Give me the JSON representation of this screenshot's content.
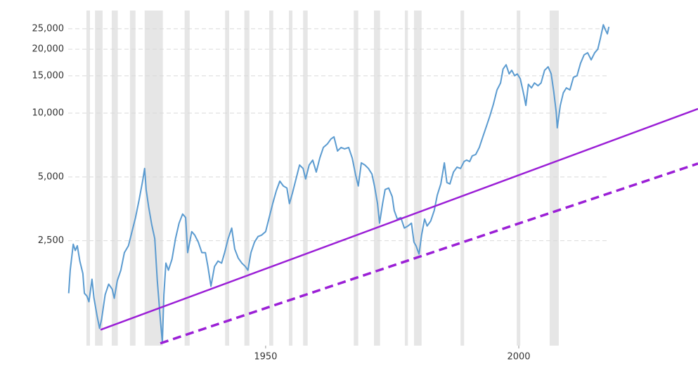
{
  "chart_data": {
    "type": "line",
    "log_y": true,
    "grid": true,
    "xlim": [
      1911,
      2035.4
    ],
    "ylim": [
      800,
      30000
    ],
    "xticks": [
      1950,
      2000
    ],
    "yticks": [
      {
        "value": 2500,
        "label": "2,500"
      },
      {
        "value": 5000,
        "label": "5,000"
      },
      {
        "value": 10000,
        "label": "10,000"
      },
      {
        "value": 15000,
        "label": "15,000"
      },
      {
        "value": 20000,
        "label": "20,000"
      },
      {
        "value": 25000,
        "label": "25,000"
      }
    ],
    "shade_color": "#e6e6e6",
    "recessions": [
      [
        1914.6,
        1915.3
      ],
      [
        1916.3,
        1917.8
      ],
      [
        1919.6,
        1920.8
      ],
      [
        1923.2,
        1924.3
      ],
      [
        1926.1,
        1929.7
      ],
      [
        1934.0,
        1935.0
      ],
      [
        1942.0,
        1942.8
      ],
      [
        1945.8,
        1946.8
      ],
      [
        1950.7,
        1951.5
      ],
      [
        1954.6,
        1955.3
      ],
      [
        1957.4,
        1958.3
      ],
      [
        1967.4,
        1968.3
      ],
      [
        1971.4,
        1972.6
      ],
      [
        1977.5,
        1978.1
      ],
      [
        1979.3,
        1980.8
      ],
      [
        1988.5,
        1989.2
      ],
      [
        1999.6,
        2000.3
      ],
      [
        2006.1,
        2007.9
      ]
    ],
    "series": [
      {
        "color": "#5b9bd0",
        "x": [
          1911.1,
          1911.4,
          1912.0,
          1912.4,
          1912.8,
          1913.3,
          1913.9,
          1914.2,
          1914.7,
          1915.1,
          1915.7,
          1916.1,
          1916.7,
          1917.2,
          1917.6,
          1918.3,
          1919.0,
          1919.7,
          1920.1,
          1920.7,
          1921.4,
          1922.1,
          1922.9,
          1923.6,
          1924.3,
          1925.0,
          1925.7,
          1926.1,
          1926.4,
          1926.9,
          1927.5,
          1928.1,
          1928.6,
          1929.2,
          1929.6,
          1929.9,
          1930.3,
          1930.8,
          1931.5,
          1932.2,
          1932.9,
          1933.6,
          1934.2,
          1934.6,
          1935.0,
          1935.4,
          1936.0,
          1936.7,
          1937.4,
          1938.1,
          1938.6,
          1939.2,
          1939.9,
          1940.6,
          1941.3,
          1941.9,
          1942.6,
          1943.3,
          1943.9,
          1944.6,
          1945.3,
          1946.0,
          1946.5,
          1947.1,
          1947.8,
          1948.5,
          1949.2,
          1950.0,
          1950.7,
          1951.4,
          1952.1,
          1952.8,
          1953.5,
          1954.2,
          1954.7,
          1955.3,
          1956.0,
          1956.7,
          1957.4,
          1957.9,
          1958.6,
          1959.3,
          1960.0,
          1960.7,
          1961.4,
          1962.2,
          1962.9,
          1963.5,
          1964.2,
          1964.9,
          1965.6,
          1966.4,
          1967.1,
          1967.8,
          1968.3,
          1968.9,
          1969.6,
          1970.3,
          1971.0,
          1971.5,
          1972.1,
          1972.5,
          1973.1,
          1973.6,
          1974.3,
          1975.0,
          1975.4,
          1976.0,
          1976.7,
          1977.4,
          1978.1,
          1978.8,
          1979.3,
          1979.7,
          1980.3,
          1980.8,
          1981.4,
          1981.9,
          1982.6,
          1983.3,
          1983.9,
          1984.6,
          1985.3,
          1985.8,
          1986.4,
          1987.1,
          1987.8,
          1988.5,
          1989.2,
          1989.7,
          1990.3,
          1990.8,
          1991.5,
          1992.2,
          1992.9,
          1993.6,
          1994.3,
          1995.0,
          1995.7,
          1996.4,
          1996.9,
          1997.5,
          1998.1,
          1998.6,
          1999.2,
          1999.7,
          2000.3,
          2001.0,
          2001.4,
          2001.9,
          2002.5,
          2003.1,
          2003.8,
          2004.4,
          2005.1,
          2005.8,
          2006.4,
          2006.9,
          2007.4,
          2007.6,
          2008.2,
          2008.8,
          2009.4,
          2010.1,
          2010.8,
          2011.5,
          2012.2,
          2012.9,
          2013.6,
          2014.3,
          2015.0,
          2015.6,
          2016.1,
          2016.7,
          2017.1,
          2017.5,
          2017.8
        ],
        "values": [
          1413,
          1815,
          2407,
          2248,
          2367,
          2005,
          1750,
          1413,
          1370,
          1289,
          1645,
          1338,
          1107,
          965,
          1066,
          1390,
          1560,
          1477,
          1338,
          1620,
          1815,
          2197,
          2367,
          2760,
          3215,
          3888,
          4775,
          5480,
          4358,
          3605,
          2978,
          2558,
          1620,
          1066,
          828,
          1390,
          1960,
          1815,
          2044,
          2558,
          3025,
          3340,
          3215,
          2197,
          2462,
          2760,
          2657,
          2462,
          2197,
          2197,
          1888,
          1525,
          1888,
          2005,
          1960,
          2197,
          2558,
          2868,
          2283,
          2067,
          1960,
          1888,
          1815,
          2197,
          2462,
          2617,
          2657,
          2760,
          3215,
          3742,
          4295,
          4775,
          4530,
          4430,
          3742,
          4197,
          4888,
          5690,
          5480,
          4888,
          5690,
          6000,
          5270,
          6137,
          6885,
          7152,
          7550,
          7725,
          6623,
          6885,
          6780,
          6885,
          6137,
          5076,
          4530,
          5825,
          5690,
          5480,
          5156,
          4530,
          3742,
          3025,
          3742,
          4358,
          4430,
          4037,
          3470,
          3166,
          3215,
          2868,
          2933,
          3025,
          2462,
          2367,
          2163,
          2657,
          3166,
          2933,
          3095,
          3470,
          4100,
          4633,
          5825,
          4705,
          4633,
          5270,
          5560,
          5480,
          5910,
          6000,
          5910,
          6280,
          6380,
          6885,
          7725,
          8650,
          9700,
          11040,
          12860,
          13870,
          16150,
          16900,
          15310,
          15920,
          15000,
          15310,
          14520,
          12190,
          10870,
          13670,
          13150,
          13870,
          13460,
          13870,
          15920,
          16530,
          15310,
          12670,
          10080,
          8520,
          10870,
          12470,
          13150,
          12860,
          14750,
          15000,
          17180,
          18820,
          19260,
          17830,
          19260,
          20000,
          22420,
          26100,
          24750,
          23650,
          25520
        ]
      }
    ],
    "trend_lines": [
      {
        "color": "#9b1fd6",
        "dashed": false,
        "x": [
          1917.4,
          2035.4
        ],
        "values": [
          950,
          10470
        ]
      },
      {
        "color": "#9b1fd6",
        "dashed": true,
        "x": [
          1929.2,
          2035.4
        ],
        "values": [
          820,
          5780
        ]
      }
    ]
  }
}
